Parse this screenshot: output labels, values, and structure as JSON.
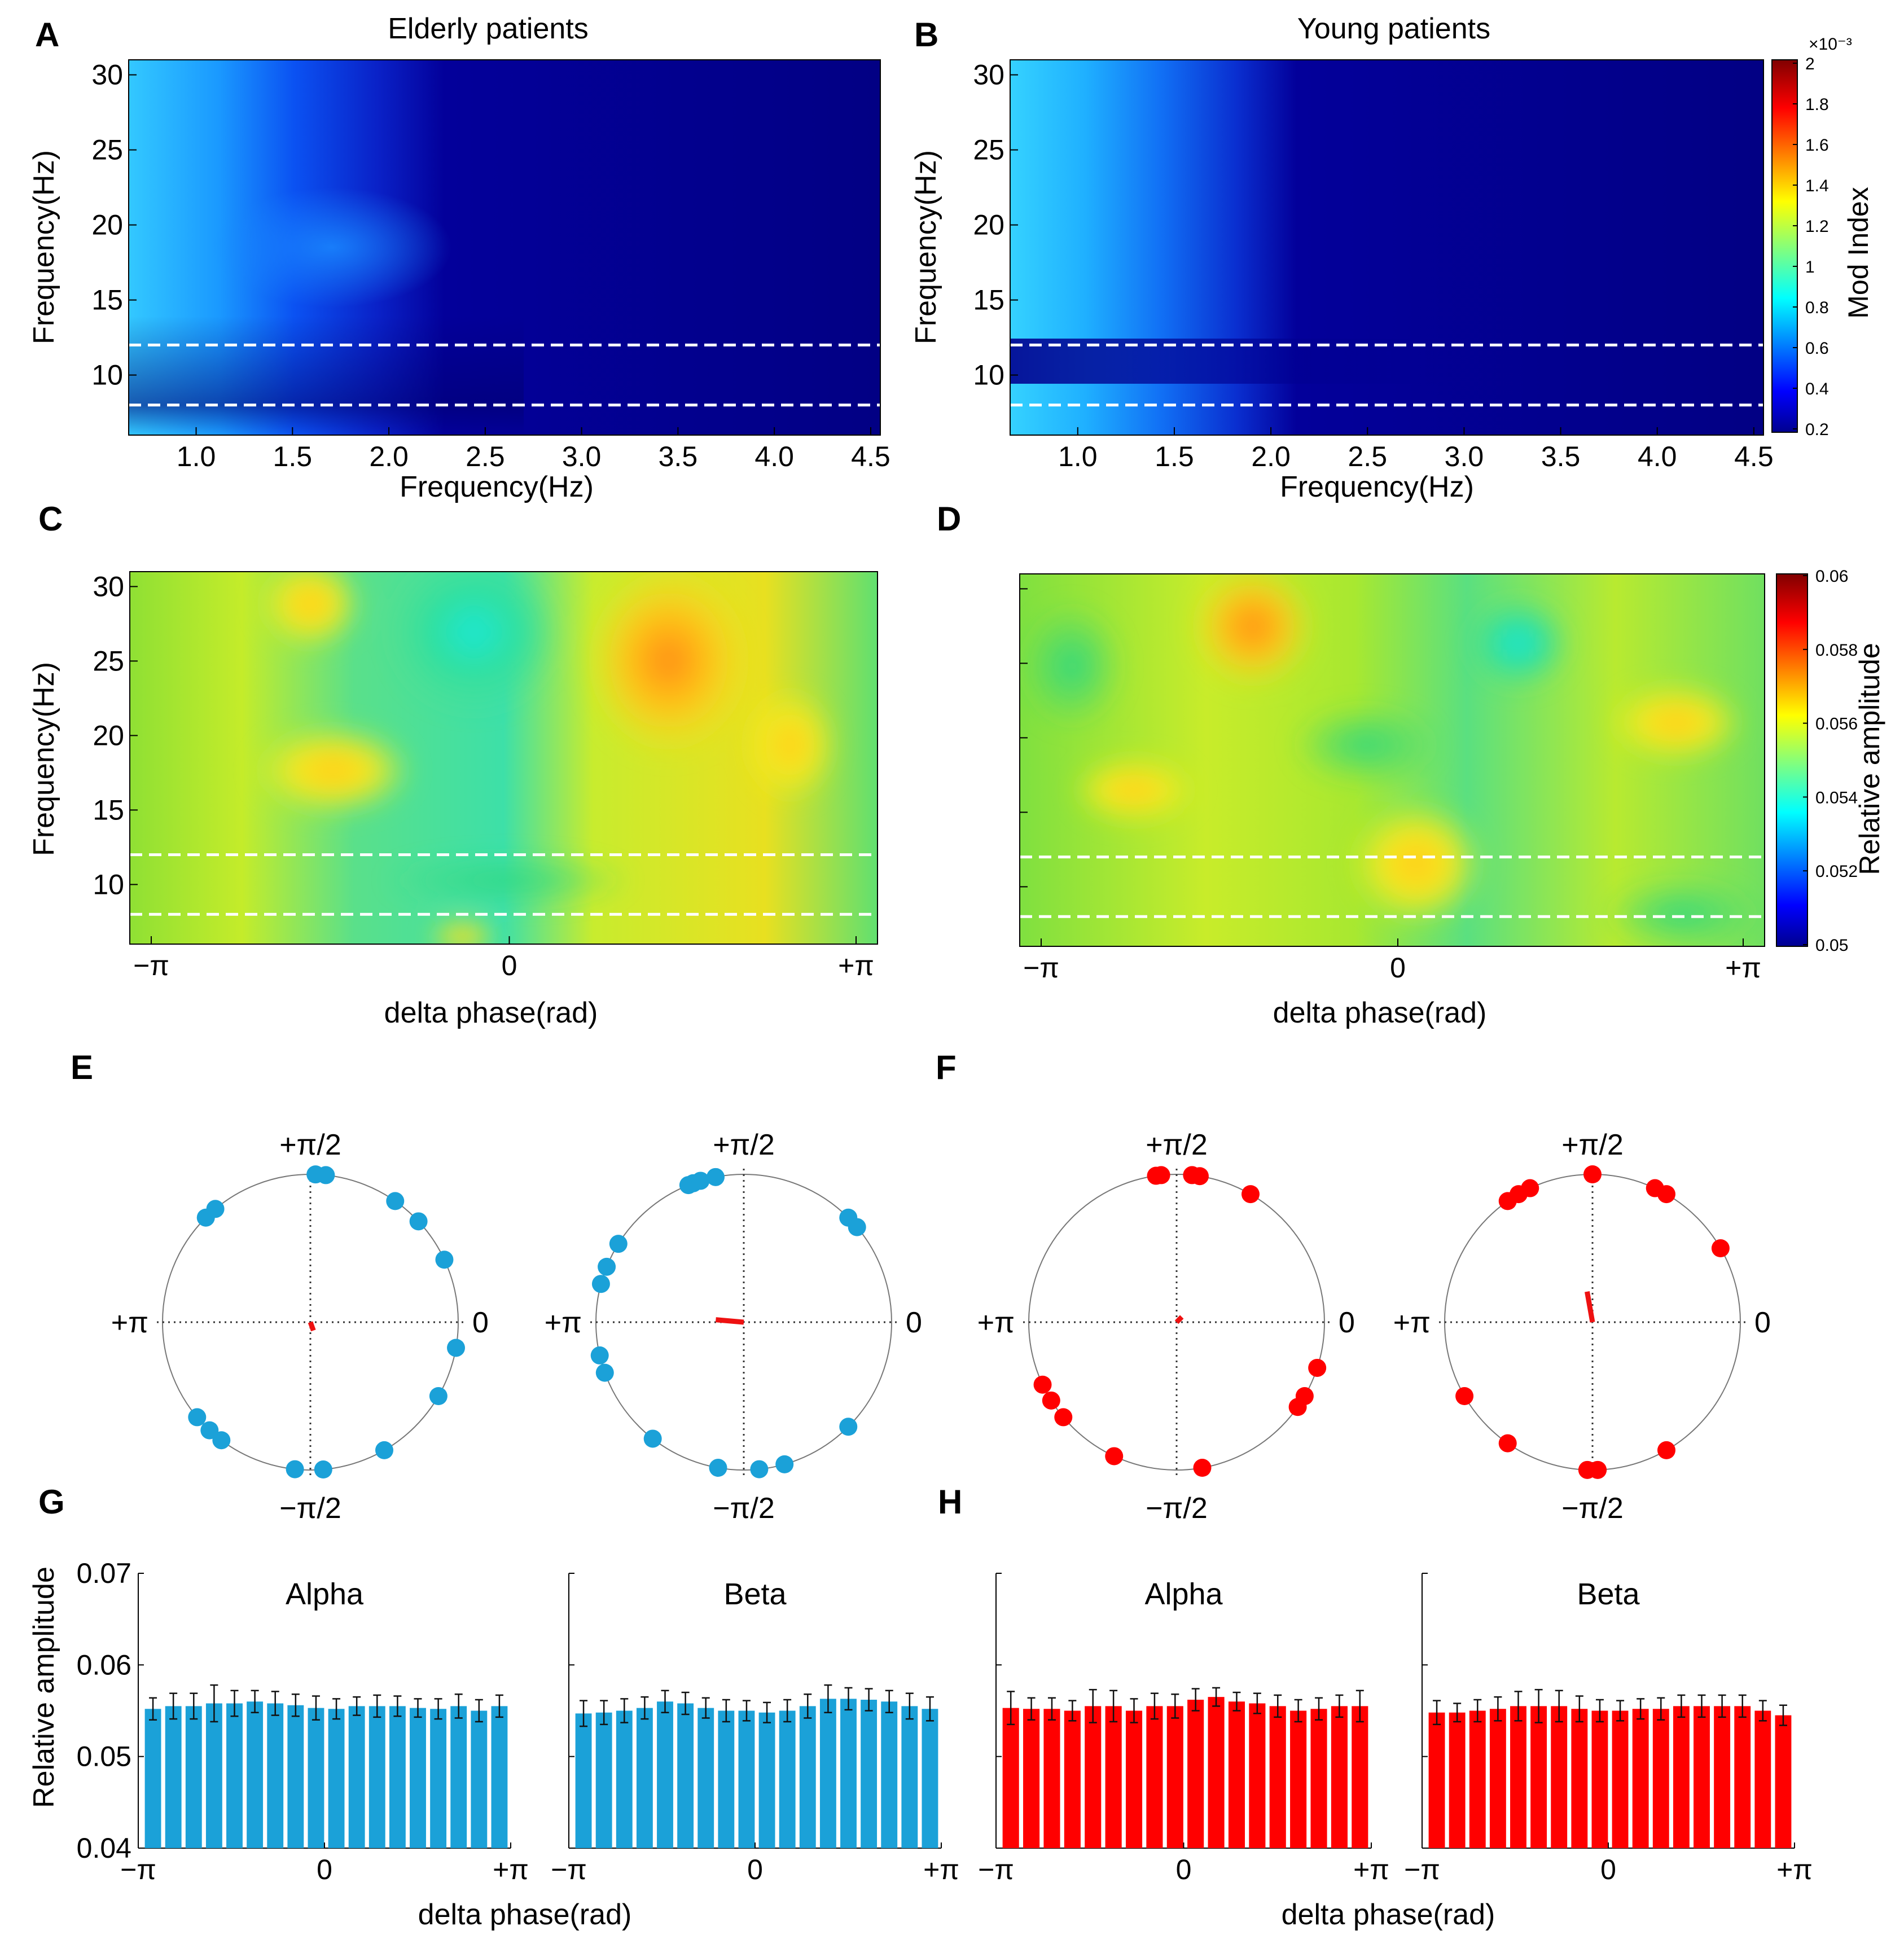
{
  "panel_letters": [
    "A",
    "B",
    "C",
    "D",
    "E",
    "F",
    "G",
    "H"
  ],
  "colors": {
    "elderly": "#1ba1d8",
    "young": "#ff0000",
    "mean_vector": "#ee1111",
    "dashed": "#ffffff"
  },
  "shared_labels": {
    "frequency_hz": "Frequency(Hz)",
    "delta_phase": "delta phase(rad)",
    "relative_amplitude": "Relative amplitude",
    "mod_index": "Mod Index",
    "mod_index_exp": "×10⁻³"
  },
  "phase_ticks": [
    "−π",
    "0",
    "+π"
  ],
  "polar_labels": {
    "top": "+π/2",
    "bottom": "−π/2",
    "left": "+π",
    "right": "0"
  },
  "chart_data": [
    {
      "id": "A",
      "type": "heatmap",
      "title": "Elderly patients",
      "xlabel": "Frequency(Hz)",
      "ylabel": "Frequency(Hz)",
      "xlim": [
        0.65,
        4.55
      ],
      "ylim": [
        6,
        31
      ],
      "xticks": [
        "1.0",
        "1.5",
        "2.0",
        "2.5",
        "3.0",
        "3.5",
        "4.0",
        "4.5"
      ],
      "yticks": [
        "10",
        "15",
        "20",
        "25",
        "30"
      ],
      "dashed_lines_y": [
        8,
        12
      ],
      "colorbar": {
        "label": "Mod Index",
        "range": [
          0.2,
          2.0
        ],
        "scale": "×10⁻³"
      }
    },
    {
      "id": "B",
      "type": "heatmap",
      "title": "Young patients",
      "xlabel": "Frequency(Hz)",
      "ylabel": "Frequency(Hz)",
      "xlim": [
        0.65,
        4.55
      ],
      "ylim": [
        6,
        31
      ],
      "xticks": [
        "1.0",
        "1.5",
        "2.0",
        "2.5",
        "3.0",
        "3.5",
        "4.0",
        "4.5"
      ],
      "yticks": [
        "10",
        "15",
        "20",
        "25",
        "30"
      ],
      "dashed_lines_y": [
        8,
        12
      ],
      "colorbar": {
        "label": "Mod Index",
        "scale": "×10⁻³",
        "range": [
          0.2,
          2.0
        ],
        "ticks": [
          "2",
          "1.8",
          "1.6",
          "1.4",
          "1.2",
          "1",
          "0.8",
          "0.6",
          "0.4",
          "0.2"
        ]
      }
    },
    {
      "id": "C",
      "type": "heatmap",
      "group": "Elderly",
      "xlabel": "delta phase(rad)",
      "ylabel": "Frequency(Hz)",
      "xticks": [
        "−π",
        "0",
        "+π"
      ],
      "yticks": [
        "10",
        "15",
        "20",
        "25",
        "30"
      ],
      "ylim": [
        6,
        31
      ],
      "dashed_lines_y": [
        8,
        12
      ],
      "colorbar": {
        "label": "Relative amplitude",
        "range": [
          0.05,
          0.06
        ]
      }
    },
    {
      "id": "D",
      "type": "heatmap",
      "group": "Young",
      "xlabel": "delta phase(rad)",
      "xticks": [
        "−π",
        "0",
        "+π"
      ],
      "ylim": [
        6,
        31
      ],
      "dashed_lines_y": [
        8,
        12
      ],
      "colorbar": {
        "label": "Relative amplitude",
        "range": [
          0.05,
          0.06
        ],
        "ticks": [
          "0.06",
          "0.058",
          "0.056",
          "0.054",
          "0.052",
          "0.05"
        ]
      }
    },
    {
      "id": "E1",
      "type": "scatter",
      "polar": true,
      "group": "Elderly",
      "band": "Alpha",
      "angles_deg": [
        135,
        130,
        88,
        84,
        55,
        43,
        25,
        -10,
        -30,
        -60,
        -85,
        -96,
        -127,
        -133,
        -140
      ],
      "mean_vector": {
        "angle_deg": -70,
        "length": 0.06
      }
    },
    {
      "id": "E2",
      "type": "scatter",
      "polar": true,
      "group": "Elderly",
      "band": "Beta",
      "angles_deg": [
        112,
        110,
        107,
        101,
        45,
        40,
        148,
        158,
        165,
        193,
        200,
        -45,
        -74,
        -84,
        -100,
        -128
      ],
      "mean_vector": {
        "angle_deg": 175,
        "length": 0.19
      }
    },
    {
      "id": "F1",
      "type": "scatter",
      "polar": true,
      "group": "Young",
      "band": "Alpha",
      "angles_deg": [
        98,
        96,
        84,
        81,
        60,
        -18,
        -30,
        -35,
        -80,
        -115,
        -140,
        -148,
        -155
      ],
      "mean_vector": {
        "angle_deg": 45,
        "length": 0.05
      }
    },
    {
      "id": "F2",
      "type": "scatter",
      "polar": true,
      "group": "Young",
      "band": "Beta",
      "angles_deg": [
        125,
        120,
        115,
        90,
        65,
        60,
        30,
        -60,
        -88,
        -92,
        -125,
        -150
      ],
      "mean_vector": {
        "angle_deg": 100,
        "length": 0.21
      }
    },
    {
      "id": "G1",
      "type": "bar",
      "group": "Elderly",
      "title": "Alpha",
      "ylabel": "Relative amplitude",
      "xlabel": "delta phase(rad)",
      "ylim": [
        0.04,
        0.07
      ],
      "yticks": [
        "0.04",
        "0.05",
        "0.06",
        "0.07"
      ],
      "xticks": [
        "−π",
        "0",
        "+π"
      ],
      "values": [
        0.0552,
        0.0555,
        0.0555,
        0.0558,
        0.0558,
        0.056,
        0.0558,
        0.0556,
        0.0553,
        0.0552,
        0.0555,
        0.0555,
        0.0555,
        0.0553,
        0.0552,
        0.0555,
        0.055,
        0.0555
      ],
      "errors": [
        0.0012,
        0.0014,
        0.0014,
        0.002,
        0.0014,
        0.0012,
        0.0013,
        0.0012,
        0.0013,
        0.0011,
        0.001,
        0.0012,
        0.0011,
        0.001,
        0.0011,
        0.0013,
        0.0012,
        0.0012
      ]
    },
    {
      "id": "G2",
      "type": "bar",
      "group": "Elderly",
      "title": "Beta",
      "xticks": [
        "−π",
        "0",
        "+π"
      ],
      "ylim": [
        0.04,
        0.07
      ],
      "values": [
        0.0547,
        0.0548,
        0.055,
        0.0553,
        0.056,
        0.0558,
        0.0553,
        0.055,
        0.055,
        0.0548,
        0.055,
        0.0555,
        0.0563,
        0.0563,
        0.0562,
        0.056,
        0.0555,
        0.0552
      ],
      "errors": [
        0.0014,
        0.0013,
        0.0013,
        0.0012,
        0.0012,
        0.0012,
        0.0011,
        0.0012,
        0.0011,
        0.0011,
        0.0012,
        0.0013,
        0.0015,
        0.0012,
        0.0012,
        0.0012,
        0.0014,
        0.0013
      ]
    },
    {
      "id": "H1",
      "type": "bar",
      "group": "Young",
      "title": "Alpha",
      "xlabel": "delta phase(rad)",
      "xticks": [
        "−π",
        "0",
        "+π"
      ],
      "ylim": [
        0.04,
        0.07
      ],
      "values": [
        0.0553,
        0.0552,
        0.0552,
        0.055,
        0.0555,
        0.0555,
        0.055,
        0.0555,
        0.0555,
        0.0562,
        0.0565,
        0.056,
        0.0558,
        0.0555,
        0.055,
        0.0552,
        0.0555,
        0.0555
      ],
      "errors": [
        0.0018,
        0.0012,
        0.0012,
        0.0011,
        0.0018,
        0.0017,
        0.0013,
        0.0014,
        0.0013,
        0.0012,
        0.001,
        0.001,
        0.0011,
        0.0012,
        0.0012,
        0.0012,
        0.0012,
        0.0017
      ]
    },
    {
      "id": "H2",
      "type": "bar",
      "group": "Young",
      "title": "Beta",
      "xticks": [
        "−π",
        "0",
        "+π"
      ],
      "ylim": [
        0.04,
        0.07
      ],
      "values": [
        0.0548,
        0.0548,
        0.055,
        0.0552,
        0.0555,
        0.0555,
        0.0555,
        0.0552,
        0.055,
        0.055,
        0.0552,
        0.0552,
        0.0555,
        0.0555,
        0.0555,
        0.0555,
        0.055,
        0.0545
      ],
      "errors": [
        0.0013,
        0.001,
        0.0012,
        0.0013,
        0.0016,
        0.0018,
        0.0017,
        0.0014,
        0.0012,
        0.0011,
        0.0011,
        0.0012,
        0.0012,
        0.0012,
        0.0012,
        0.0012,
        0.0011,
        0.0011
      ]
    }
  ]
}
